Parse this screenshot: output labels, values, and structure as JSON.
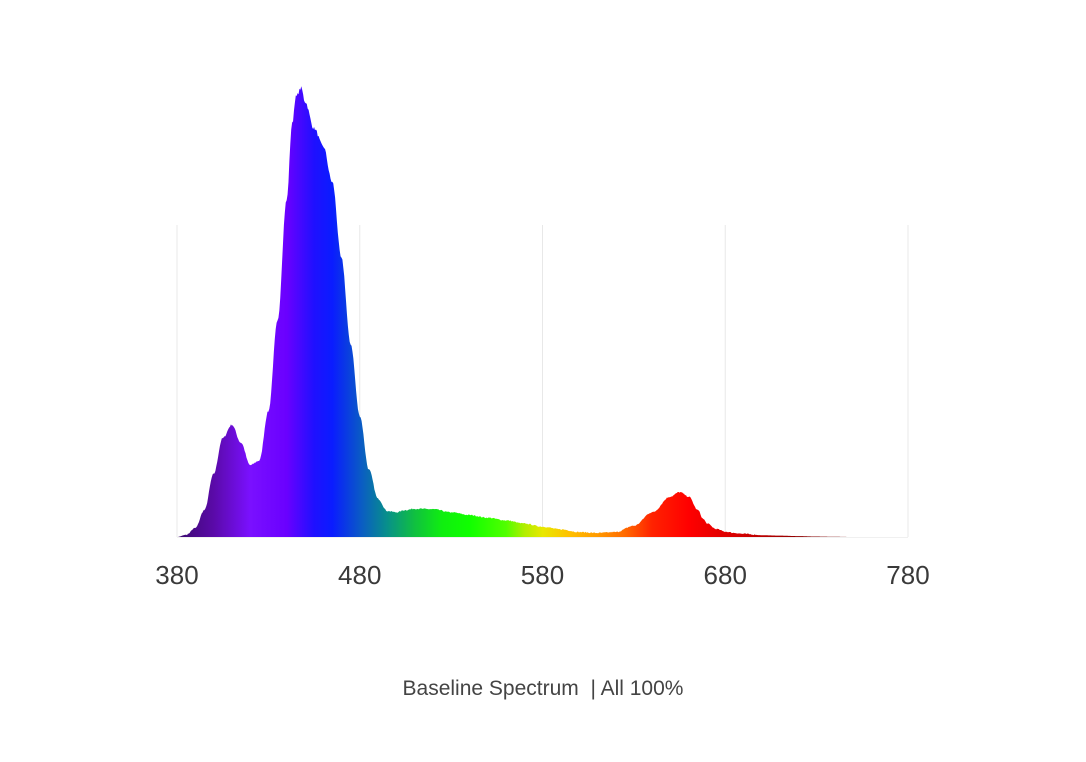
{
  "caption": "Baseline Spectrum  | All 100%",
  "chart_data": {
    "type": "area",
    "title": "",
    "xlabel": "",
    "ylabel": "",
    "xlim": [
      380,
      780
    ],
    "ylim": [
      0,
      1
    ],
    "x_ticks": [
      380,
      480,
      580,
      680,
      780
    ],
    "x_tick_labels": [
      "380",
      "480",
      "580",
      "680",
      "780"
    ],
    "grid": "vertical",
    "fill": "spectral colour gradient by wavelength",
    "series": [
      {
        "x": [
          380,
          385,
          390,
          395,
          400,
          405,
          410,
          415,
          420,
          425,
          430,
          435,
          440,
          443,
          445,
          448,
          450,
          455,
          460,
          465,
          470,
          475,
          480,
          485,
          490,
          495,
          500,
          505,
          510,
          520,
          530,
          540,
          550,
          560,
          570,
          580,
          590,
          600,
          610,
          620,
          630,
          640,
          650,
          655,
          660,
          665,
          668,
          670,
          675,
          680,
          685,
          690,
          700,
          710,
          720,
          730,
          740,
          750,
          760,
          770,
          780
        ],
        "y": [
          0.0,
          0.005,
          0.02,
          0.06,
          0.14,
          0.22,
          0.25,
          0.21,
          0.16,
          0.17,
          0.28,
          0.48,
          0.75,
          0.92,
          0.98,
          1.0,
          0.97,
          0.91,
          0.87,
          0.79,
          0.62,
          0.43,
          0.27,
          0.15,
          0.085,
          0.058,
          0.055,
          0.06,
          0.063,
          0.062,
          0.055,
          0.049,
          0.043,
          0.037,
          0.03,
          0.023,
          0.017,
          0.011,
          0.009,
          0.011,
          0.025,
          0.055,
          0.09,
          0.1,
          0.09,
          0.06,
          0.04,
          0.03,
          0.018,
          0.012,
          0.009,
          0.007,
          0.004,
          0.003,
          0.002,
          0.001,
          0.0005,
          0.0,
          0.0,
          0.0,
          0.0
        ]
      }
    ]
  }
}
